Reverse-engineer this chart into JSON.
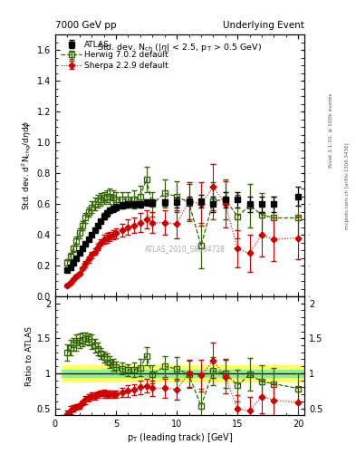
{
  "title_left": "7000 GeV pp",
  "title_right": "Underlying Event",
  "panel_title": "Std. dev. N$_{ch}$ ($|\\eta|$ < 2.5, p$_{T}$ > 0.5 GeV)",
  "ylabel_main": "Std. dev. d$^{2}$N$_{chg}$/d$\\eta$d$\\phi$",
  "ylabel_ratio": "Ratio to ATLAS",
  "xlabel": "p$_{T}$ (leading track) [GeV]",
  "watermark": "ATLAS_2010_S8894728",
  "atlas_x": [
    1.0,
    1.25,
    1.5,
    1.75,
    2.0,
    2.25,
    2.5,
    2.75,
    3.0,
    3.25,
    3.5,
    3.75,
    4.0,
    4.25,
    4.5,
    4.75,
    5.0,
    5.5,
    6.0,
    6.5,
    7.0,
    7.5,
    8.0,
    9.0,
    10.0,
    11.0,
    12.0,
    13.0,
    14.0,
    15.0,
    16.0,
    17.0,
    18.0,
    20.0
  ],
  "atlas_y": [
    0.17,
    0.19,
    0.22,
    0.25,
    0.28,
    0.31,
    0.34,
    0.37,
    0.4,
    0.43,
    0.46,
    0.49,
    0.52,
    0.54,
    0.56,
    0.57,
    0.58,
    0.59,
    0.6,
    0.6,
    0.6,
    0.61,
    0.61,
    0.61,
    0.61,
    0.62,
    0.62,
    0.6,
    0.63,
    0.63,
    0.6,
    0.6,
    0.6,
    0.65
  ],
  "atlas_yerr": [
    0.01,
    0.01,
    0.01,
    0.01,
    0.01,
    0.01,
    0.01,
    0.01,
    0.01,
    0.01,
    0.01,
    0.01,
    0.02,
    0.02,
    0.02,
    0.02,
    0.02,
    0.02,
    0.02,
    0.02,
    0.02,
    0.02,
    0.02,
    0.02,
    0.03,
    0.03,
    0.04,
    0.05,
    0.05,
    0.05,
    0.05,
    0.05,
    0.05,
    0.06
  ],
  "herwig_x": [
    1.0,
    1.25,
    1.5,
    1.75,
    2.0,
    2.25,
    2.5,
    2.75,
    3.0,
    3.25,
    3.5,
    3.75,
    4.0,
    4.25,
    4.5,
    4.75,
    5.0,
    5.5,
    6.0,
    6.5,
    7.0,
    7.5,
    8.0,
    9.0,
    10.0,
    11.0,
    12.0,
    13.0,
    14.0,
    15.0,
    16.0,
    17.0,
    18.0,
    20.0
  ],
  "herwig_y": [
    0.22,
    0.26,
    0.31,
    0.36,
    0.41,
    0.46,
    0.51,
    0.55,
    0.58,
    0.6,
    0.62,
    0.63,
    0.64,
    0.65,
    0.65,
    0.64,
    0.63,
    0.63,
    0.63,
    0.63,
    0.65,
    0.76,
    0.6,
    0.67,
    0.65,
    0.61,
    0.33,
    0.62,
    0.63,
    0.52,
    0.59,
    0.53,
    0.51,
    0.51
  ],
  "herwig_yerr": [
    0.02,
    0.02,
    0.02,
    0.03,
    0.03,
    0.03,
    0.03,
    0.03,
    0.04,
    0.04,
    0.04,
    0.04,
    0.04,
    0.04,
    0.05,
    0.05,
    0.05,
    0.05,
    0.05,
    0.06,
    0.07,
    0.08,
    0.08,
    0.09,
    0.1,
    0.12,
    0.15,
    0.12,
    0.13,
    0.14,
    0.14,
    0.14,
    0.14,
    0.14
  ],
  "sherpa_x": [
    1.0,
    1.25,
    1.5,
    1.75,
    2.0,
    2.25,
    2.5,
    2.75,
    3.0,
    3.25,
    3.5,
    3.75,
    4.0,
    4.25,
    4.5,
    4.75,
    5.0,
    5.5,
    6.0,
    6.5,
    7.0,
    7.5,
    8.0,
    9.0,
    10.0,
    11.0,
    12.0,
    13.0,
    14.0,
    15.0,
    16.0,
    17.0,
    18.0,
    20.0
  ],
  "sherpa_y": [
    0.07,
    0.09,
    0.11,
    0.13,
    0.15,
    0.18,
    0.21,
    0.24,
    0.27,
    0.29,
    0.32,
    0.35,
    0.37,
    0.38,
    0.39,
    0.4,
    0.41,
    0.43,
    0.45,
    0.46,
    0.48,
    0.5,
    0.48,
    0.48,
    0.47,
    0.62,
    0.6,
    0.71,
    0.6,
    0.31,
    0.28,
    0.4,
    0.37,
    0.38
  ],
  "sherpa_yerr": [
    0.01,
    0.01,
    0.01,
    0.01,
    0.01,
    0.01,
    0.02,
    0.02,
    0.02,
    0.02,
    0.02,
    0.02,
    0.03,
    0.03,
    0.03,
    0.03,
    0.03,
    0.04,
    0.05,
    0.05,
    0.06,
    0.06,
    0.07,
    0.08,
    0.09,
    0.12,
    0.14,
    0.15,
    0.15,
    0.12,
    0.12,
    0.14,
    0.14,
    0.14
  ],
  "atlas_color": "#000000",
  "herwig_color": "#336600",
  "sherpa_color": "#cc0000",
  "xlim": [
    0.5,
    20.5
  ],
  "ylim_main": [
    0.0,
    1.7
  ],
  "ylim_ratio": [
    0.4,
    2.1
  ],
  "band_green_inner": 0.05,
  "band_yellow_outer": 0.12
}
